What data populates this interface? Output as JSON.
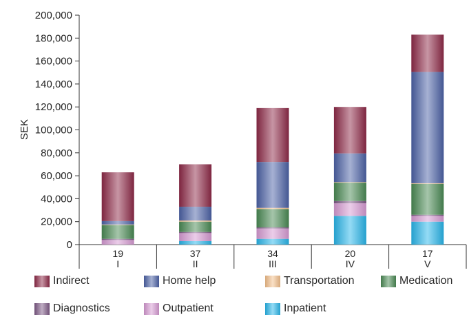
{
  "chart_data": {
    "type": "bar",
    "stacked": true,
    "ylabel": "SEK",
    "ylim": [
      0,
      200000
    ],
    "yticks": [
      "0",
      "20,000",
      "40,000",
      "60,000",
      "80,000",
      "100,000",
      "120,000",
      "140,000",
      "160,000",
      "180,000",
      "200,000"
    ],
    "ytick_values": [
      0,
      20000,
      40000,
      60000,
      80000,
      100000,
      120000,
      140000,
      160000,
      180000,
      200000
    ],
    "categories": [
      "I",
      "II",
      "III",
      "IV",
      "V"
    ],
    "counts": [
      "19",
      "37",
      "34",
      "20",
      "17"
    ],
    "series": [
      {
        "name": "Inpatient",
        "color": "#29b6ea",
        "values": [
          0,
          3000,
          5000,
          25000,
          20000
        ]
      },
      {
        "name": "Outpatient",
        "color": "#d79bd3",
        "values": [
          4000,
          7000,
          9000,
          11000,
          5000
        ]
      },
      {
        "name": "Diagnostics",
        "color": "#7e5a86",
        "values": [
          1000,
          1000,
          1000,
          2000,
          1000
        ]
      },
      {
        "name": "Medication",
        "color": "#4a8a54",
        "values": [
          12000,
          9000,
          16000,
          16000,
          27000
        ]
      },
      {
        "name": "Transportation",
        "color": "#f4c08c",
        "values": [
          500,
          1000,
          1000,
          500,
          500
        ]
      },
      {
        "name": "Home help",
        "color": "#4c62a6",
        "values": [
          3000,
          12000,
          40000,
          25000,
          97000
        ]
      },
      {
        "name": "Indirect",
        "color": "#8e2a48",
        "values": [
          42500,
          37000,
          47000,
          40500,
          32500
        ]
      }
    ],
    "legend_order": [
      "Indirect",
      "Home help",
      "Transportation",
      "Medication",
      "Diagnostics",
      "Outpatient",
      "Inpatient"
    ],
    "legend_placement": "bottom",
    "grid": false
  }
}
